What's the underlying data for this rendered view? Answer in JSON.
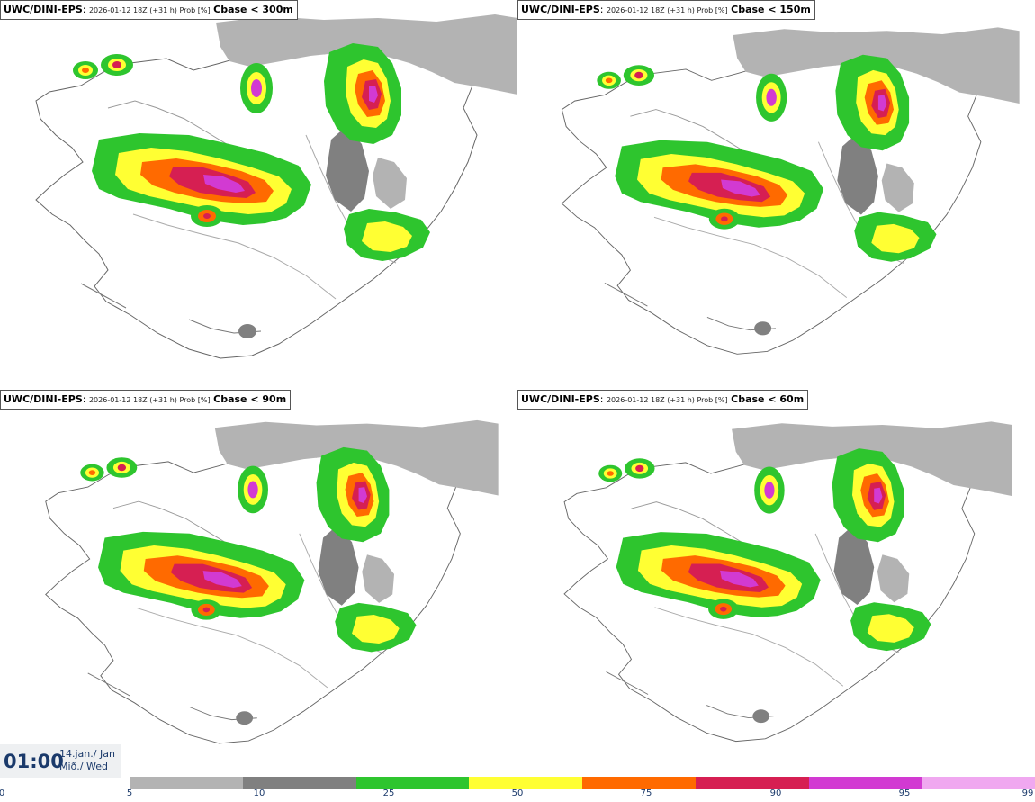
{
  "panels": [
    {
      "model": "UWC/DINI-EPS",
      "meta": "2026-01-12 18Z (+31 h) Prob [%]",
      "cbase": "Cbase < 300m",
      "map_icon": "iceland-probability-map-icon"
    },
    {
      "model": "UWC/DINI-EPS",
      "meta": "2026-01-12 18Z (+31 h) Prob [%]",
      "cbase": "Cbase < 150m",
      "map_icon": "iceland-probability-map-icon"
    },
    {
      "model": "UWC/DINI-EPS",
      "meta": "2026-01-12 18Z (+31 h) Prob [%]",
      "cbase": "Cbase < 90m",
      "map_icon": "iceland-probability-map-icon"
    },
    {
      "model": "UWC/DINI-EPS",
      "meta": "2026-01-12 18Z (+31 h) Prob [%]",
      "cbase": "Cbase < 60m",
      "map_icon": "iceland-probability-map-icon"
    }
  ],
  "time_box": {
    "time": "01:00",
    "date_line1": "14.jan./ Jan",
    "date_line2": "Mið./ Wed"
  },
  "legend": {
    "ticks": [
      "0",
      "5",
      "10",
      "25",
      "50",
      "75",
      "90",
      "95",
      "99"
    ],
    "colors": [
      "#b3b3b3",
      "#808080",
      "#2ec52e",
      "#ffff33",
      "#ff6a00",
      "#d61f52",
      "#d23ad2",
      "#f0a8f0"
    ]
  }
}
